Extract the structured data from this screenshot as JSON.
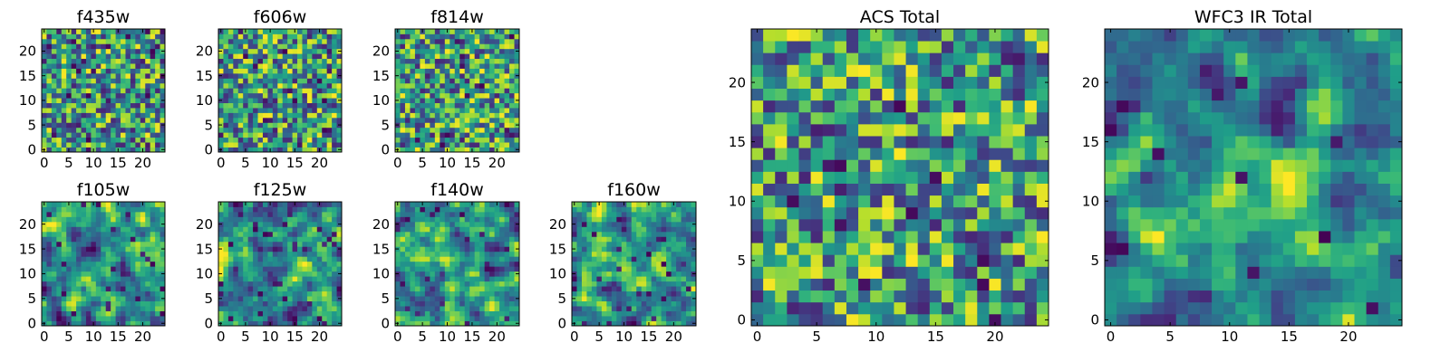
{
  "figure": {
    "description_free": true
  },
  "chart_data": [
    {
      "id": "f435w",
      "type": "heatmap",
      "title": "f435w",
      "xlim": [
        0,
        24
      ],
      "ylim": [
        0,
        24
      ],
      "xticks": [
        "0",
        "5",
        "10",
        "15",
        "20"
      ],
      "yticks": [
        "0",
        "5",
        "10",
        "15",
        "20"
      ],
      "grid": false,
      "colormap": "viridis",
      "texture": "noise",
      "seed": 11
    },
    {
      "id": "f606w",
      "type": "heatmap",
      "title": "f606w",
      "xlim": [
        0,
        24
      ],
      "ylim": [
        0,
        24
      ],
      "xticks": [
        "0",
        "5",
        "10",
        "15",
        "20"
      ],
      "yticks": [
        "0",
        "5",
        "10",
        "15",
        "20"
      ],
      "grid": false,
      "colormap": "viridis",
      "texture": "noise",
      "seed": 23
    },
    {
      "id": "f814w",
      "type": "heatmap",
      "title": "f814w",
      "xlim": [
        0,
        24
      ],
      "ylim": [
        0,
        24
      ],
      "xticks": [
        "0",
        "5",
        "10",
        "15",
        "20"
      ],
      "yticks": [
        "0",
        "5",
        "10",
        "15",
        "20"
      ],
      "grid": false,
      "colormap": "viridis",
      "texture": "noise",
      "seed": 37
    },
    {
      "id": "f105w",
      "type": "heatmap",
      "title": "f105w",
      "xlim": [
        0,
        24
      ],
      "ylim": [
        0,
        24
      ],
      "xticks": [
        "0",
        "5",
        "10",
        "15",
        "20"
      ],
      "yticks": [
        "0",
        "5",
        "10",
        "15",
        "20"
      ],
      "grid": false,
      "colormap": "viridis",
      "texture": "smooth",
      "seed": 41
    },
    {
      "id": "f125w",
      "type": "heatmap",
      "title": "f125w",
      "xlim": [
        0,
        24
      ],
      "ylim": [
        0,
        24
      ],
      "xticks": [
        "0",
        "5",
        "10",
        "15",
        "20"
      ],
      "yticks": [
        "0",
        "5",
        "10",
        "15",
        "20"
      ],
      "grid": false,
      "colormap": "viridis",
      "texture": "smooth",
      "seed": 53
    },
    {
      "id": "f140w",
      "type": "heatmap",
      "title": "f140w",
      "xlim": [
        0,
        24
      ],
      "ylim": [
        0,
        24
      ],
      "xticks": [
        "0",
        "5",
        "10",
        "15",
        "20"
      ],
      "yticks": [
        "0",
        "5",
        "10",
        "15",
        "20"
      ],
      "grid": false,
      "colormap": "viridis",
      "texture": "smooth",
      "seed": 67
    },
    {
      "id": "f160w",
      "type": "heatmap",
      "title": "f160w",
      "xlim": [
        0,
        24
      ],
      "ylim": [
        0,
        24
      ],
      "xticks": [
        "0",
        "5",
        "10",
        "15",
        "20"
      ],
      "yticks": [
        "0",
        "5",
        "10",
        "15",
        "20"
      ],
      "grid": false,
      "colormap": "viridis",
      "texture": "smooth",
      "seed": 79
    },
    {
      "id": "acs_total",
      "type": "heatmap",
      "title": "ACS Total",
      "xlim": [
        0,
        24
      ],
      "ylim": [
        0,
        24
      ],
      "xticks": [
        "0",
        "5",
        "10",
        "15",
        "20"
      ],
      "yticks": [
        "0",
        "5",
        "10",
        "15",
        "20"
      ],
      "grid": false,
      "colormap": "viridis",
      "texture": "noise",
      "seed": 97
    },
    {
      "id": "wfc3_ir_total",
      "type": "heatmap",
      "title": "WFC3 IR Total",
      "xlim": [
        0,
        24
      ],
      "ylim": [
        0,
        24
      ],
      "xticks": [
        "0",
        "5",
        "10",
        "15",
        "20"
      ],
      "yticks": [
        "0",
        "5",
        "10",
        "15",
        "20"
      ],
      "grid": false,
      "colormap": "viridis",
      "texture": "source",
      "seed": 101
    }
  ],
  "colors": {
    "viridis_dark": "#440154",
    "viridis_mid": "#21918c",
    "viridis_bright": "#fde725",
    "axis": "#000000",
    "background": "#ffffff"
  }
}
